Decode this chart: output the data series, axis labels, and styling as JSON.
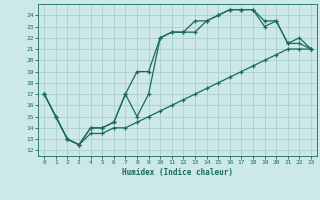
{
  "xlabel": "Humidex (Indice chaleur)",
  "bg_color": "#cce8e8",
  "grid_color": "#aacece",
  "line_color": "#1a6b5a",
  "xlim": [
    -0.5,
    23.5
  ],
  "ylim": [
    11.5,
    25.0
  ],
  "yticks": [
    12,
    13,
    14,
    15,
    16,
    17,
    18,
    19,
    20,
    21,
    22,
    23,
    24
  ],
  "xticks": [
    0,
    1,
    2,
    3,
    4,
    5,
    6,
    7,
    8,
    9,
    10,
    11,
    12,
    13,
    14,
    15,
    16,
    17,
    18,
    19,
    20,
    21,
    22,
    23
  ],
  "line1_x": [
    0,
    1,
    2,
    3,
    4,
    5,
    6,
    7,
    8,
    9,
    10,
    11,
    12,
    13,
    14,
    15,
    16,
    17,
    18,
    19,
    20,
    21,
    22,
    23
  ],
  "line1_y": [
    17,
    15,
    13,
    12.5,
    14,
    14,
    14.5,
    17,
    15,
    17,
    22,
    22.5,
    22.5,
    22.5,
    23.5,
    24,
    24.5,
    24.5,
    24.5,
    23.5,
    23.5,
    21.5,
    21.5,
    21
  ],
  "line2_x": [
    0,
    1,
    2,
    3,
    4,
    5,
    6,
    7,
    8,
    9,
    10,
    11,
    12,
    13,
    14,
    15,
    16,
    17,
    18,
    19,
    20,
    21,
    22,
    23
  ],
  "line2_y": [
    17,
    15,
    13,
    12.5,
    14,
    14,
    14.5,
    17,
    19,
    19,
    22,
    22.5,
    22.5,
    23.5,
    23.5,
    24,
    24.5,
    24.5,
    24.5,
    23,
    23.5,
    21.5,
    22,
    21
  ],
  "line3_x": [
    0,
    1,
    2,
    3,
    4,
    5,
    6,
    7,
    8,
    9,
    10,
    11,
    12,
    13,
    14,
    15,
    16,
    17,
    18,
    19,
    20,
    21,
    22,
    23
  ],
  "line3_y": [
    17,
    15,
    13,
    12.5,
    13.5,
    13.5,
    14,
    14,
    14.5,
    15,
    15.5,
    16,
    16.5,
    17,
    17.5,
    18,
    18.5,
    19,
    19.5,
    20,
    20.5,
    21,
    21,
    21
  ]
}
